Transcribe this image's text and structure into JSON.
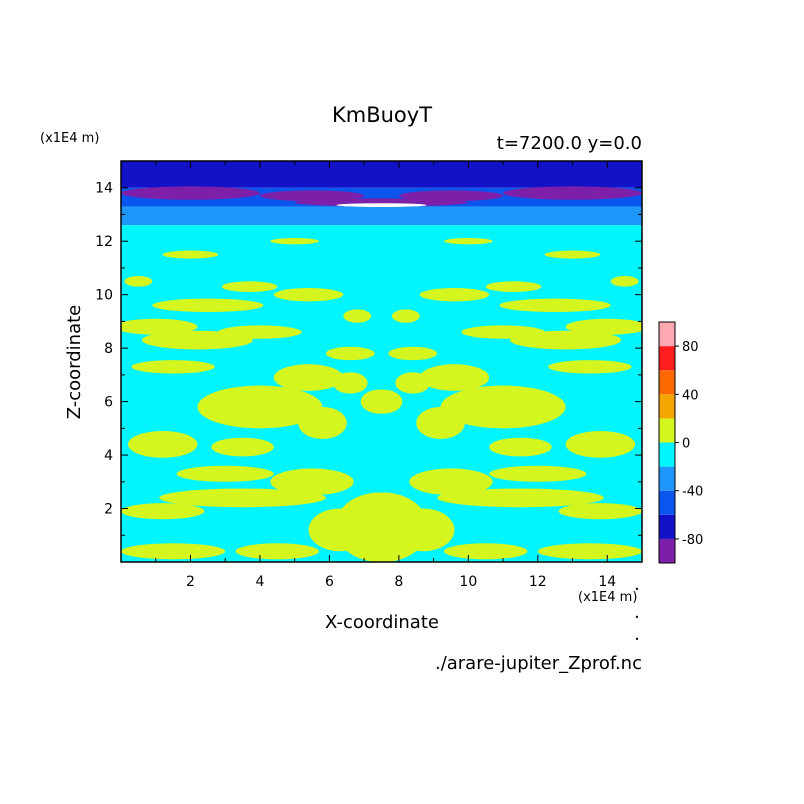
{
  "chart_data": {
    "type": "heatmap",
    "title": "KmBuoyT",
    "subtitle": "t=7200.0 y=0.0",
    "xlabel": "X-coordinate",
    "ylabel": "Z-coordinate",
    "x_unit": "(x1E4 m)",
    "y_unit": "(x1E4 m)",
    "xlim": [
      0,
      15
    ],
    "ylim": [
      0,
      15
    ],
    "x_ticks": [
      2,
      4,
      6,
      8,
      10,
      12,
      14
    ],
    "y_ticks": [
      2,
      4,
      6,
      8,
      10,
      12,
      14
    ],
    "source_file": "./arare-jupiter_Zprof.nc",
    "colorbar": {
      "range": [
        -100,
        100
      ],
      "step": 20,
      "tick_labels": [
        {
          "value": 80,
          "label": "80"
        },
        {
          "value": 40,
          "label": "40"
        },
        {
          "value": 0,
          "label": "0"
        },
        {
          "value": -40,
          "label": "-40"
        },
        {
          "value": -80,
          "label": "-80"
        }
      ],
      "levels": [
        {
          "min": -100,
          "max": -80,
          "color": "#7d1fa8"
        },
        {
          "min": -80,
          "max": -60,
          "color": "#1212c8"
        },
        {
          "min": -60,
          "max": -40,
          "color": "#0a55ee"
        },
        {
          "min": -40,
          "max": -20,
          "color": "#1e96fa"
        },
        {
          "min": -20,
          "max": 0,
          "color": "#00f5ff"
        },
        {
          "min": 0,
          "max": 20,
          "color": "#d4f51e"
        },
        {
          "min": 20,
          "max": 40,
          "color": "#f5a500"
        },
        {
          "min": 40,
          "max": 60,
          "color": "#ff6a00"
        },
        {
          "min": 60,
          "max": 80,
          "color": "#ff1e1e"
        },
        {
          "min": 80,
          "max": 100,
          "color": "#ffa8b4"
        }
      ]
    },
    "bands": [
      {
        "z_min": 14.0,
        "z_max": 15.0,
        "level": "-80 to -60"
      },
      {
        "z_min": 13.3,
        "z_max": 14.0,
        "level": "-100 to -80 (patches), -60 to -40"
      },
      {
        "z_min": 12.6,
        "z_max": 13.3,
        "level": "-40 to -20"
      },
      {
        "z_min": 0.0,
        "z_max": 12.6,
        "level": "-20 to 0 with 0 to 20 patches"
      }
    ],
    "patches": [
      {
        "x": 1.0,
        "z": 8.8,
        "rx": 1.2,
        "rz": 0.3
      },
      {
        "x": 2.2,
        "z": 8.3,
        "rx": 1.6,
        "rz": 0.35
      },
      {
        "x": 2.5,
        "z": 9.6,
        "rx": 1.6,
        "rz": 0.25
      },
      {
        "x": 4.0,
        "z": 8.6,
        "rx": 1.2,
        "rz": 0.25
      },
      {
        "x": 1.5,
        "z": 7.3,
        "rx": 1.2,
        "rz": 0.25
      },
      {
        "x": 4.0,
        "z": 5.8,
        "rx": 1.8,
        "rz": 0.8
      },
      {
        "x": 5.4,
        "z": 6.9,
        "rx": 1.0,
        "rz": 0.5
      },
      {
        "x": 5.8,
        "z": 5.2,
        "rx": 0.7,
        "rz": 0.6
      },
      {
        "x": 6.6,
        "z": 6.7,
        "rx": 0.5,
        "rz": 0.4
      },
      {
        "x": 6.6,
        "z": 7.8,
        "rx": 0.7,
        "rz": 0.25
      },
      {
        "x": 5.4,
        "z": 10.0,
        "rx": 1.0,
        "rz": 0.25
      },
      {
        "x": 3.7,
        "z": 10.3,
        "rx": 0.8,
        "rz": 0.2
      },
      {
        "x": 6.8,
        "z": 9.2,
        "rx": 0.4,
        "rz": 0.25
      },
      {
        "x": 7.45,
        "z": 6.0,
        "rx": 0.55,
        "rz": 0.45
      },
      {
        "x": 7.45,
        "z": 1.3,
        "rx": 1.3,
        "rz": 1.3
      },
      {
        "x": 6.3,
        "z": 1.2,
        "rx": 0.9,
        "rz": 0.8
      },
      {
        "x": 3.5,
        "z": 2.4,
        "rx": 2.4,
        "rz": 0.35
      },
      {
        "x": 1.2,
        "z": 1.9,
        "rx": 1.2,
        "rz": 0.3
      },
      {
        "x": 3.0,
        "z": 3.3,
        "rx": 1.4,
        "rz": 0.3
      },
      {
        "x": 1.2,
        "z": 4.4,
        "rx": 1.0,
        "rz": 0.5
      },
      {
        "x": 3.5,
        "z": 4.3,
        "rx": 0.9,
        "rz": 0.35
      },
      {
        "x": 5.5,
        "z": 3.0,
        "rx": 1.2,
        "rz": 0.5
      },
      {
        "x": 1.5,
        "z": 0.4,
        "rx": 1.5,
        "rz": 0.3
      },
      {
        "x": 4.5,
        "z": 0.4,
        "rx": 1.2,
        "rz": 0.3
      },
      {
        "x": 2.0,
        "z": 11.5,
        "rx": 0.8,
        "rz": 0.15
      },
      {
        "x": 0.5,
        "z": 10.5,
        "rx": 0.4,
        "rz": 0.2
      },
      {
        "x": 5.0,
        "z": 12.0,
        "rx": 0.7,
        "rz": 0.12
      }
    ]
  }
}
